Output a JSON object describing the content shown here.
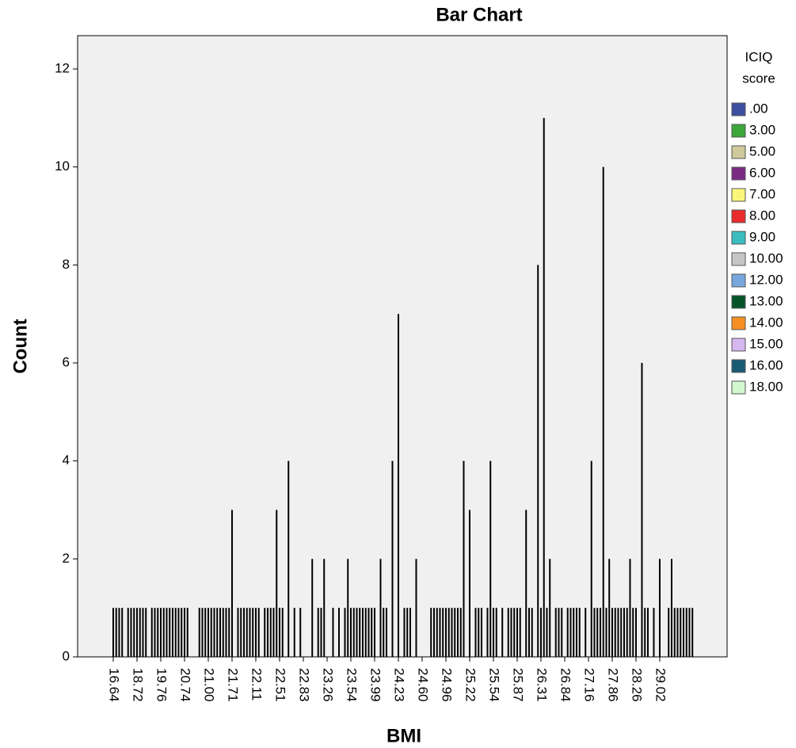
{
  "chart_data": {
    "type": "bar",
    "title": "Bar Chart",
    "x_label": "BMI",
    "y_label": "Count",
    "categories": [
      "16.64",
      null,
      null,
      null,
      null,
      null,
      null,
      null,
      "18.72",
      null,
      null,
      null,
      null,
      null,
      null,
      null,
      "19.76",
      null,
      null,
      null,
      null,
      null,
      null,
      null,
      "20.74",
      null,
      null,
      null,
      null,
      null,
      null,
      null,
      "21.00",
      null,
      null,
      null,
      null,
      null,
      null,
      null,
      "21.71",
      null,
      null,
      null,
      null,
      null,
      null,
      null,
      "22.11",
      null,
      null,
      null,
      null,
      null,
      null,
      null,
      "22.51",
      null,
      null,
      null,
      null,
      null,
      null,
      null,
      "22.83",
      null,
      null,
      null,
      null,
      null,
      null,
      null,
      "23.26",
      null,
      null,
      null,
      null,
      null,
      null,
      null,
      "23.54",
      null,
      null,
      null,
      null,
      null,
      null,
      null,
      "23.99",
      null,
      null,
      null,
      null,
      null,
      null,
      null,
      "24.23",
      null,
      null,
      null,
      null,
      null,
      null,
      null,
      "24.60",
      null,
      null,
      null,
      null,
      null,
      null,
      null,
      "24.96",
      null,
      null,
      null,
      null,
      null,
      null,
      null,
      "25.22",
      null,
      null,
      null,
      null,
      null,
      null,
      null,
      "25.54",
      null,
      null,
      null,
      null,
      null,
      null,
      null,
      "25.87",
      null,
      null,
      null,
      null,
      null,
      null,
      null,
      "26.31",
      null,
      null,
      null,
      null,
      null,
      null,
      null,
      "26.84",
      null,
      null,
      null,
      null,
      null,
      null,
      null,
      "27.16",
      null,
      null,
      null,
      null,
      null,
      null,
      null,
      "27.86",
      null,
      null,
      null,
      null,
      null,
      null,
      null,
      "28.26",
      null,
      null,
      null,
      null,
      null,
      null,
      null,
      "29.02",
      null,
      null,
      null,
      null,
      null,
      null,
      null,
      null,
      null,
      null,
      null
    ],
    "values": [
      1,
      1,
      1,
      1,
      0,
      1,
      1,
      1,
      1,
      1,
      1,
      1,
      0,
      1,
      1,
      1,
      1,
      1,
      1,
      1,
      1,
      1,
      1,
      1,
      1,
      1,
      0,
      0,
      0,
      1,
      1,
      1,
      1,
      1,
      1,
      1,
      1,
      1,
      1,
      1,
      3,
      0,
      1,
      1,
      1,
      1,
      1,
      1,
      1,
      1,
      0,
      1,
      1,
      1,
      1,
      3,
      1,
      1,
      0,
      4,
      0,
      1,
      0,
      1,
      0,
      0,
      0,
      2,
      0,
      1,
      1,
      2,
      0,
      0,
      1,
      0,
      1,
      0,
      1,
      2,
      1,
      1,
      1,
      1,
      1,
      1,
      1,
      1,
      1,
      0,
      2,
      1,
      1,
      0,
      4,
      0,
      7,
      0,
      1,
      1,
      1,
      0,
      2,
      0,
      0,
      0,
      0,
      1,
      1,
      1,
      1,
      1,
      1,
      1,
      1,
      1,
      1,
      1,
      4,
      0,
      3,
      0,
      1,
      1,
      1,
      0,
      1,
      4,
      1,
      1,
      0,
      1,
      0,
      1,
      1,
      1,
      1,
      1,
      0,
      3,
      1,
      1,
      0,
      8,
      1,
      11,
      1,
      2,
      0,
      1,
      1,
      1,
      0,
      1,
      1,
      1,
      1,
      1,
      0,
      1,
      0,
      4,
      1,
      1,
      1,
      10,
      1,
      2,
      1,
      1,
      1,
      1,
      1,
      1,
      2,
      1,
      1,
      0,
      6,
      1,
      1,
      0,
      1,
      0,
      2,
      0,
      0,
      1,
      2,
      1,
      1,
      1,
      1,
      1,
      1,
      1
    ],
    "color": "#000000",
    "background": "#f0f0f0",
    "ylim": [
      0,
      12.68
    ],
    "yticks": [
      0,
      2,
      4,
      6,
      8,
      10,
      12
    ],
    "legend_title_lines": [
      "ICIQ",
      "score"
    ],
    "legend": [
      {
        "name": ".00",
        "color": "#3e4ea0"
      },
      {
        "name": "3.00",
        "color": "#3ca73a"
      },
      {
        "name": "5.00",
        "color": "#cfc89a"
      },
      {
        "name": "6.00",
        "color": "#7c2b83"
      },
      {
        "name": "7.00",
        "color": "#fbf67a"
      },
      {
        "name": "8.00",
        "color": "#ea2b2b"
      },
      {
        "name": "9.00",
        "color": "#3bbdc0"
      },
      {
        "name": "10.00",
        "color": "#c6c6c6"
      },
      {
        "name": "12.00",
        "color": "#79a7dd"
      },
      {
        "name": "13.00",
        "color": "#06542a"
      },
      {
        "name": "14.00",
        "color": "#f68f23"
      },
      {
        "name": "15.00",
        "color": "#d6b6ee"
      },
      {
        "name": "16.00",
        "color": "#185c74"
      },
      {
        "name": "18.00",
        "color": "#d1f8cf"
      }
    ]
  }
}
